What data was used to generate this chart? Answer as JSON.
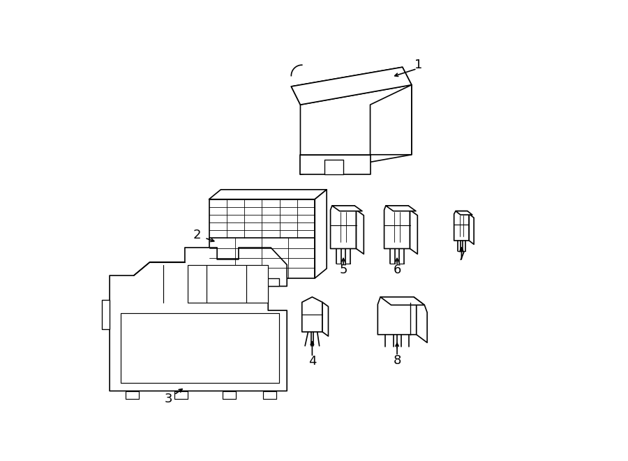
{
  "bg": "#ffffff",
  "lc": "#000000",
  "lw": 1.2,
  "fw": 9.0,
  "fh": 6.61
}
